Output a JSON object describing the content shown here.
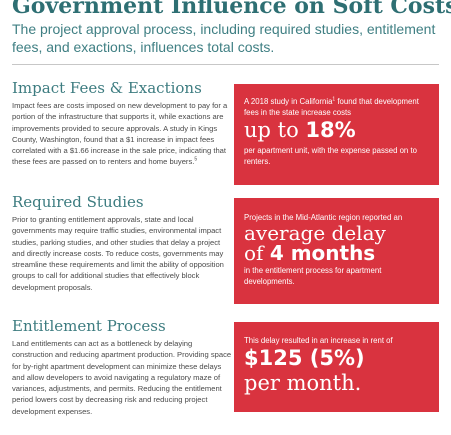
{
  "header": {
    "title": "Government Influence on Soft Costs",
    "subtitle": "The project approval process, including required studies, entitlement fees, and exactions, influences total costs."
  },
  "sections": [
    {
      "heading": "Impact Fees & Exactions",
      "body": "Impact fees are costs imposed on new development to pay for a portion of the infrastructure that supports it, while exactions are improvements provided to secure approvals. A study in Kings County, Washington, found that a $1 increase in impact fees correlated with a $1.66 increase in the sale price, indicating that these fees are passed on to renters and home buyers.",
      "footnote": "5"
    },
    {
      "heading": "Required Studies",
      "body": "Prior to granting entitlement approvals, state and local governments may require traffic studies, environmental impact studies, parking studies, and other studies that delay a project and directly increase costs. To reduce costs, governments may streamline these requirements and limit the ability of opposition groups to call for additional studies that effectively block development proposals."
    },
    {
      "heading": "Entitlement Process",
      "body": "Land entitlements can act as a bottleneck by delaying construction and reducing apartment production. Providing space for by-right apartment development can minimize these delays and allow developers to avoid navigating a regulatory maze of variances, adjustments, and permits. Reducing the entitlement period lowers cost by decreasing risk and reducing project development expenses."
    }
  ],
  "callouts": [
    {
      "lead": "A 2018 study in California",
      "lead_sup": "1",
      "lead_rest": " found that development fees in the state increase costs",
      "big_pre": "up to ",
      "big_bold": "18%",
      "tail": "per apartment unit, with the expense passed on to renters."
    },
    {
      "lead": "Projects in the Mid-Atlantic region reported an",
      "big_line1": "average delay",
      "big_pre": "of ",
      "big_bold": "4 months",
      "tail": "in the entitlement process for apartment developments."
    },
    {
      "lead": "This delay resulted in an increase in rent of",
      "big_bold": "$125 (5%)",
      "big_line2": "per month."
    }
  ],
  "colors": {
    "heading_teal": "#2e6f73",
    "callout_red": "#d9333f",
    "body_gray": "#4a4a4a"
  }
}
